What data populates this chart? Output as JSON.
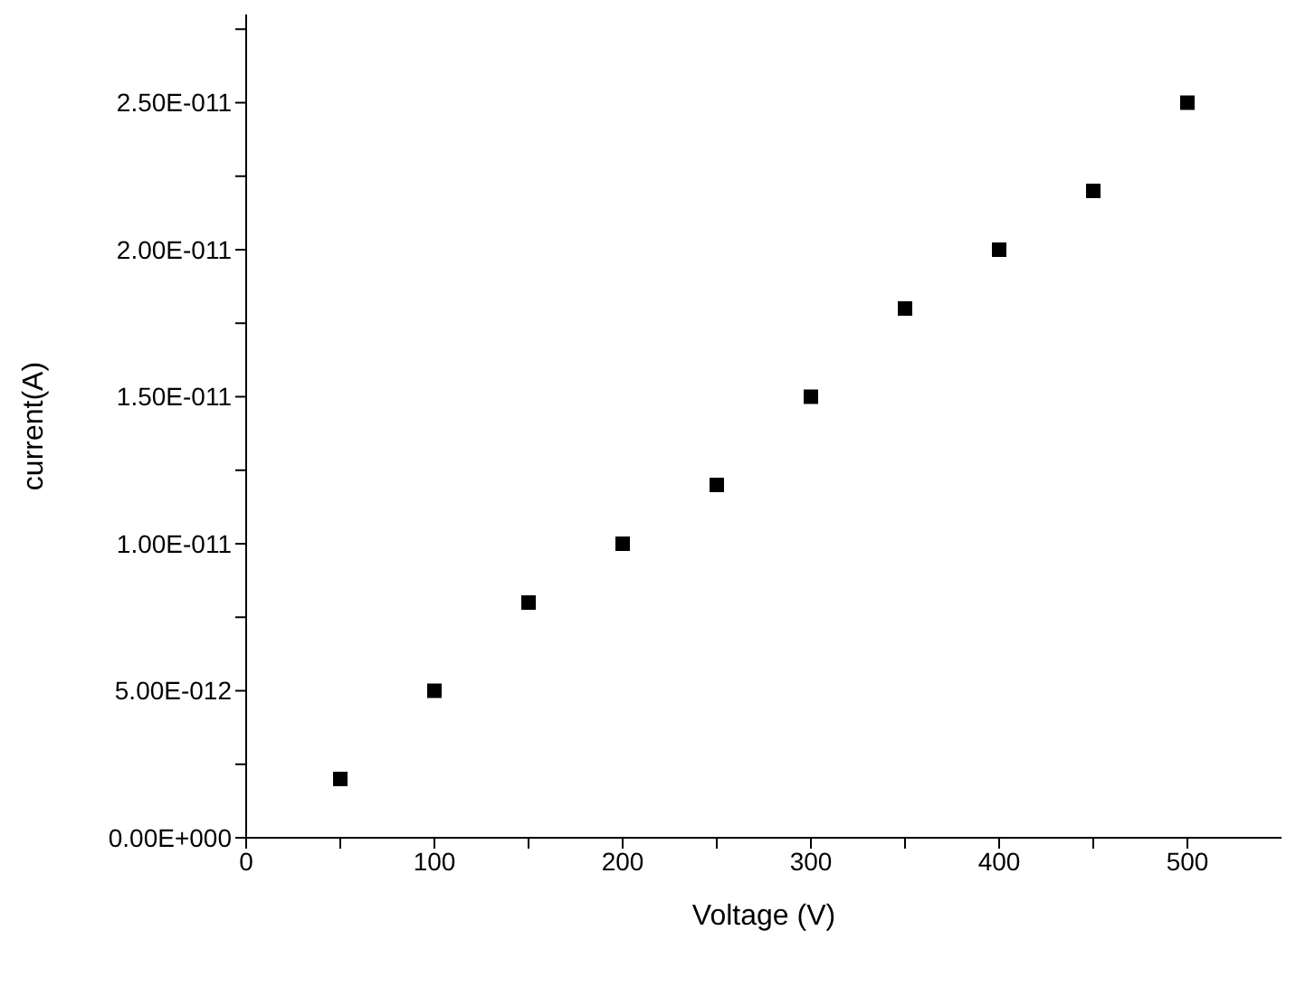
{
  "chart_data": {
    "type": "scatter",
    "xlabel": "Voltage (V)",
    "ylabel": "current(A)",
    "x": [
      50,
      100,
      150,
      200,
      250,
      300,
      350,
      400,
      450,
      500
    ],
    "series": [
      {
        "color": "#000000",
        "values": [
          2e-12,
          5e-12,
          8e-12,
          1e-11,
          1.2e-11,
          1.5e-11,
          1.8e-11,
          2e-11,
          2.2e-11,
          2.5e-11
        ]
      }
    ],
    "xlim": [
      0,
      550
    ],
    "xticks": [
      0,
      {
        "value": 50,
        "label": null
      },
      100,
      {
        "value": 150,
        "label": null
      },
      200,
      {
        "value": 250,
        "label": null
      },
      300,
      {
        "value": 350,
        "label": null
      },
      400,
      {
        "value": 450,
        "label": null
      },
      500
    ],
    "ylim": [
      0,
      2.8e-11
    ],
    "yticks": [
      {
        "value": 0,
        "label": "0.00E+000"
      },
      {
        "value": 2.5e-12,
        "label": null
      },
      {
        "value": 5e-12,
        "label": "5.00E-012"
      },
      {
        "value": 7.5e-12,
        "label": null
      },
      {
        "value": 1e-11,
        "label": "1.00E-011"
      },
      {
        "value": 1.25e-11,
        "label": null
      },
      {
        "value": 1.5e-11,
        "label": "1.50E-011"
      },
      {
        "value": 1.75e-11,
        "label": null
      },
      {
        "value": 2e-11,
        "label": "2.00E-011"
      },
      {
        "value": 2.25e-11,
        "label": null
      },
      {
        "value": 2.5e-11,
        "label": "2.50E-011"
      },
      {
        "value": 2.75e-11,
        "label": null
      }
    ],
    "grid": false,
    "marker": "square"
  }
}
